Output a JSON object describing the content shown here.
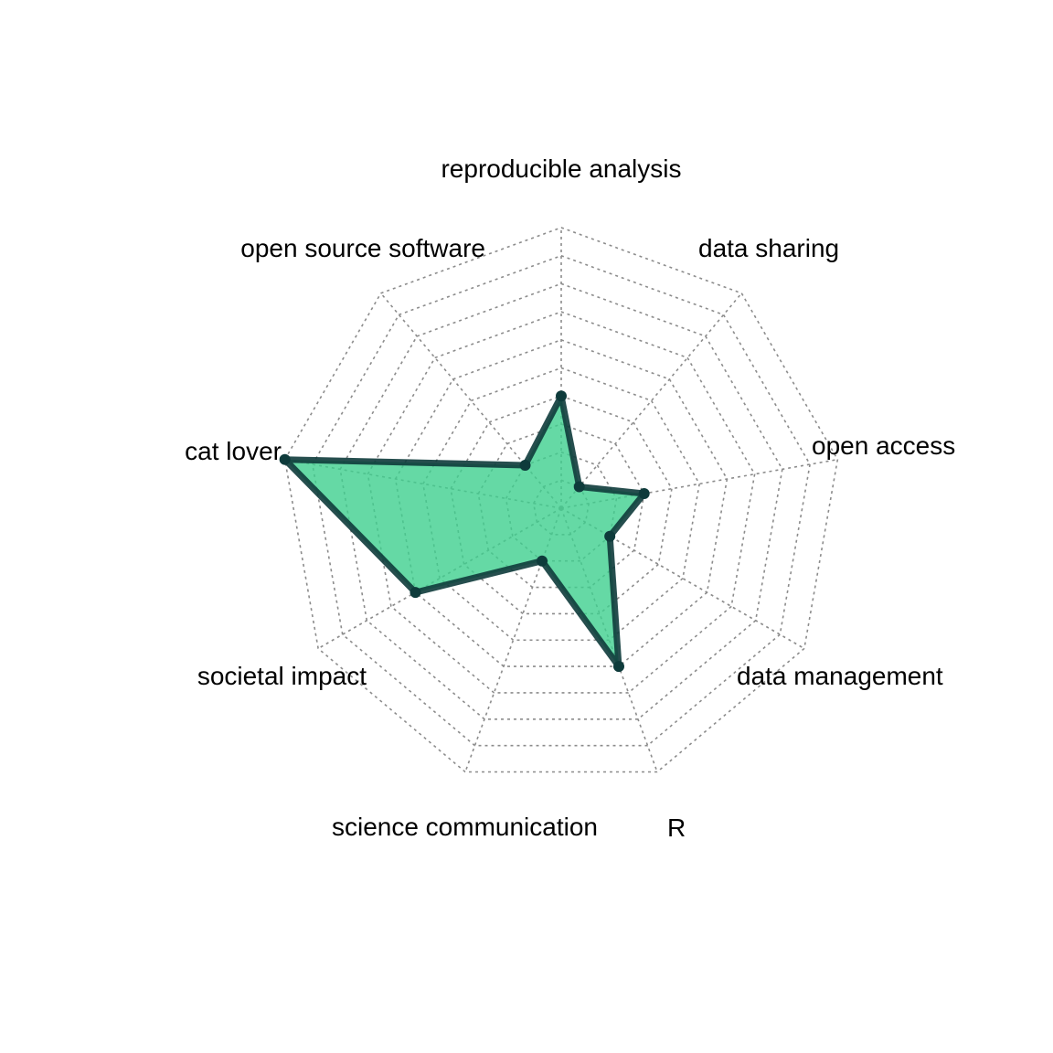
{
  "chart_data": {
    "type": "radar",
    "axes": [
      "reproducible analysis",
      "data sharing",
      "open access",
      "data management",
      "R",
      "science communication",
      "societal impact",
      "cat lover",
      "open source software"
    ],
    "series": [
      {
        "values": [
          4,
          1,
          3,
          2,
          6,
          2,
          6,
          10,
          2
        ]
      }
    ],
    "scale": [
      0,
      10
    ],
    "grid_levels": 10,
    "grid": true,
    "legend": "none",
    "fill_color": "#3ecf8e",
    "fill_opacity": 0.8,
    "line_color": "#0e3b3b",
    "grid_color": "#8c8c8c"
  }
}
